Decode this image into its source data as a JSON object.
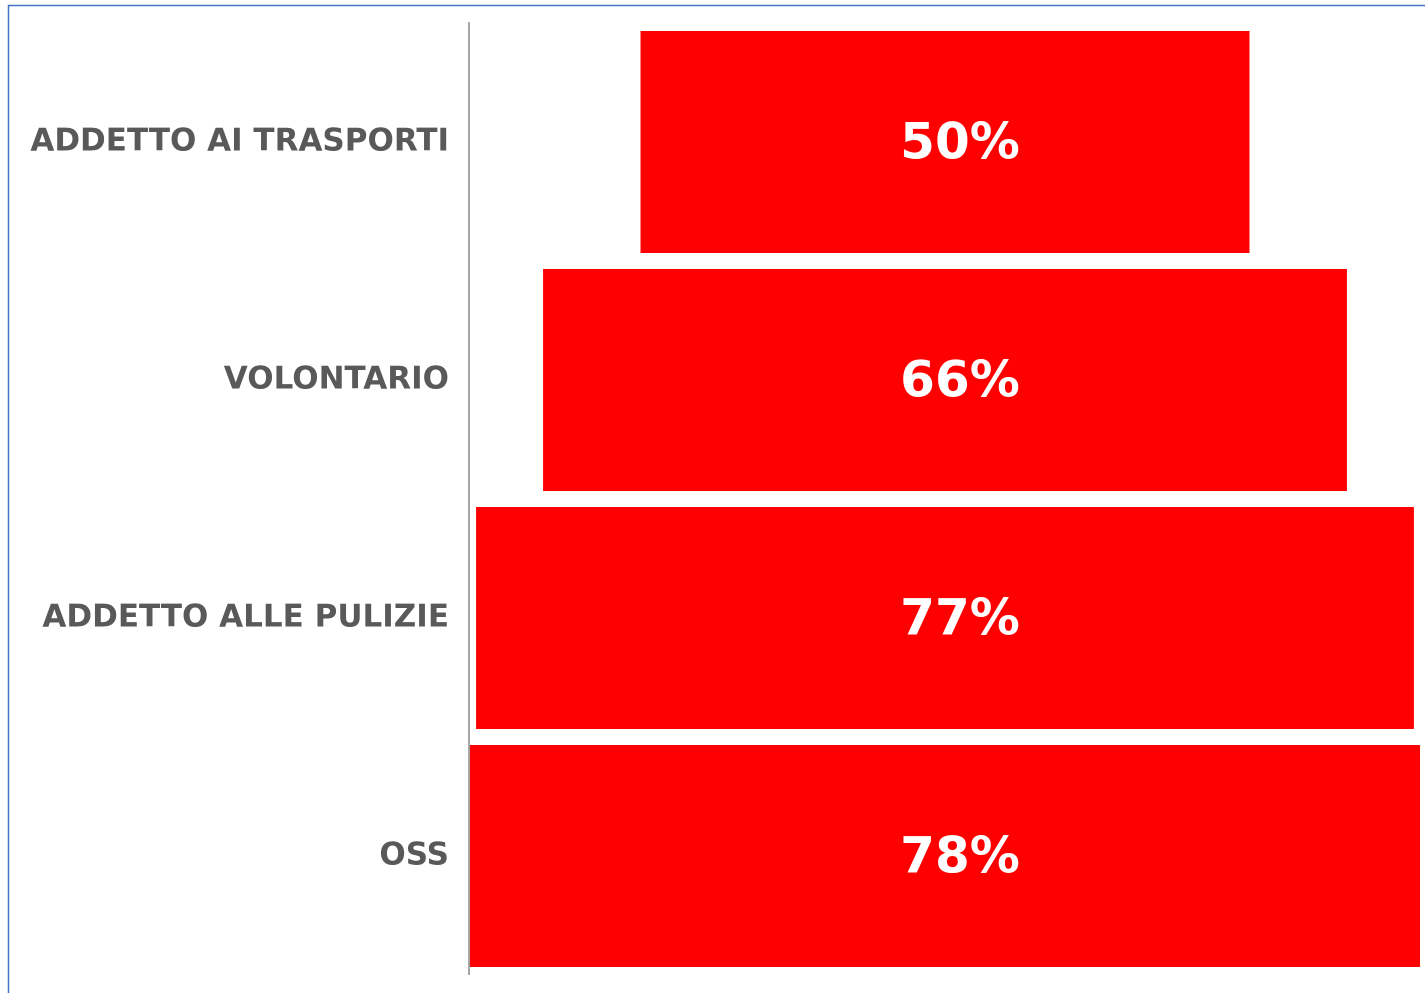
{
  "chart_data": {
    "type": "funnel",
    "categories": [
      "ADDETTO AI TRASPORTI",
      "VOLONTARIO",
      "ADDETTO ALLE PULIZIE",
      "OSS"
    ],
    "values": [
      50,
      66,
      77,
      78
    ],
    "value_labels": [
      "50%",
      "66%",
      "77%",
      "78%"
    ],
    "color": "#ff0000"
  }
}
